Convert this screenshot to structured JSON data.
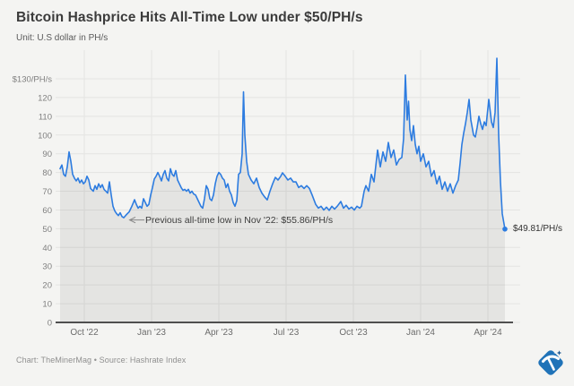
{
  "header": {
    "title": "Bitcoin Hashprice Hits All-Time Low under $50/PH/s",
    "subtitle": "Unit: U.S dollar in PH/s"
  },
  "footer": {
    "credit": "Chart: TheMinerMag • Source: Hashrate Index"
  },
  "logo": {
    "name": "TheMinerMag pickaxe diamond logo"
  },
  "chart_data": {
    "type": "line",
    "title": "Bitcoin Hashprice Hits All-Time Low under $50/PH/s",
    "xlabel": "",
    "ylabel": "U.S dollar in PH/s",
    "ylim": [
      0,
      130
    ],
    "grid": true,
    "legend": "none",
    "x_unit": "months since Sep 2022 (0 = Sep '22, 1 = Oct '22, 19 = Apr '24)",
    "x_ticks": [
      {
        "label": "Oct '22",
        "m": 1
      },
      {
        "label": "Jan '23",
        "m": 4
      },
      {
        "label": "Apr '23",
        "m": 7
      },
      {
        "label": "Jul '23",
        "m": 10
      },
      {
        "label": "Oct '23",
        "m": 13
      },
      {
        "label": "Jan '24",
        "m": 16
      },
      {
        "label": "Apr '24",
        "m": 19
      }
    ],
    "y_ticks": [
      {
        "label": "0",
        "v": 0
      },
      {
        "label": "10",
        "v": 10
      },
      {
        "label": "20",
        "v": 20
      },
      {
        "label": "30",
        "v": 30
      },
      {
        "label": "40",
        "v": 40
      },
      {
        "label": "50",
        "v": 50
      },
      {
        "label": "60",
        "v": 60
      },
      {
        "label": "70",
        "v": 70
      },
      {
        "label": "80",
        "v": 80
      },
      {
        "label": "90",
        "v": 90
      },
      {
        "label": "100",
        "v": 100
      },
      {
        "label": "110",
        "v": 110
      },
      {
        "label": "120",
        "v": 120
      },
      {
        "label": "$130/PH/s",
        "v": 130
      }
    ],
    "annotation": {
      "text": "Previous all-time low in Nov '22: $55.86/PH/s",
      "points_to": {
        "m": 2.76,
        "v": 55.86
      }
    },
    "end_label": {
      "text": "$49.81/PH/s",
      "m": 19.76,
      "v": 49.81
    },
    "colors": {
      "line": "#2d7ce0",
      "area": "rgba(70,70,70,0.09)",
      "grid": "#e4e4e2",
      "axis": "#4f4f4f",
      "background": "#f4f4f2",
      "logo_blue": "#2073b8",
      "logo_sparkle": "#17538f"
    },
    "series": [
      {
        "name": "Bitcoin hashprice (USD/PH/s)",
        "points": [
          [
            -0.08,
            82
          ],
          [
            0,
            84
          ],
          [
            0.08,
            79
          ],
          [
            0.16,
            78
          ],
          [
            0.24,
            83
          ],
          [
            0.32,
            91
          ],
          [
            0.4,
            86
          ],
          [
            0.48,
            79
          ],
          [
            0.56,
            77
          ],
          [
            0.64,
            75.5
          ],
          [
            0.72,
            77
          ],
          [
            0.8,
            74.5
          ],
          [
            0.88,
            76
          ],
          [
            0.96,
            74
          ],
          [
            1.04,
            75
          ],
          [
            1.12,
            78
          ],
          [
            1.2,
            76
          ],
          [
            1.28,
            71.5
          ],
          [
            1.4,
            70
          ],
          [
            1.48,
            73
          ],
          [
            1.56,
            71
          ],
          [
            1.64,
            74
          ],
          [
            1.72,
            72
          ],
          [
            1.8,
            73.5
          ],
          [
            1.88,
            71
          ],
          [
            1.96,
            70
          ],
          [
            2.04,
            69
          ],
          [
            2.12,
            75
          ],
          [
            2.2,
            68
          ],
          [
            2.28,
            62
          ],
          [
            2.36,
            59.5
          ],
          [
            2.44,
            58
          ],
          [
            2.52,
            57
          ],
          [
            2.6,
            58.5
          ],
          [
            2.68,
            56.5
          ],
          [
            2.76,
            55.86
          ],
          [
            2.84,
            57
          ],
          [
            2.92,
            58
          ],
          [
            3,
            59
          ],
          [
            3.12,
            62
          ],
          [
            3.24,
            65.5
          ],
          [
            3.32,
            63
          ],
          [
            3.4,
            61
          ],
          [
            3.48,
            62
          ],
          [
            3.56,
            61
          ],
          [
            3.64,
            66
          ],
          [
            3.72,
            64
          ],
          [
            3.8,
            62
          ],
          [
            3.88,
            63
          ],
          [
            3.96,
            68
          ],
          [
            4.04,
            72
          ],
          [
            4.12,
            76.5
          ],
          [
            4.2,
            78
          ],
          [
            4.28,
            80
          ],
          [
            4.36,
            78
          ],
          [
            4.44,
            75.5
          ],
          [
            4.52,
            79
          ],
          [
            4.6,
            81
          ],
          [
            4.68,
            77
          ],
          [
            4.76,
            75.5
          ],
          [
            4.84,
            82
          ],
          [
            4.92,
            79
          ],
          [
            5,
            78
          ],
          [
            5.08,
            81
          ],
          [
            5.16,
            76
          ],
          [
            5.24,
            74
          ],
          [
            5.32,
            72
          ],
          [
            5.4,
            70.5
          ],
          [
            5.48,
            71
          ],
          [
            5.56,
            70
          ],
          [
            5.64,
            71
          ],
          [
            5.72,
            69
          ],
          [
            5.8,
            70
          ],
          [
            5.88,
            68.5
          ],
          [
            5.96,
            68
          ],
          [
            6.04,
            66
          ],
          [
            6.12,
            64
          ],
          [
            6.2,
            62
          ],
          [
            6.28,
            61
          ],
          [
            6.36,
            66
          ],
          [
            6.44,
            73
          ],
          [
            6.52,
            71
          ],
          [
            6.6,
            66
          ],
          [
            6.68,
            65
          ],
          [
            6.76,
            68
          ],
          [
            6.84,
            74
          ],
          [
            6.92,
            78
          ],
          [
            7,
            80
          ],
          [
            7.08,
            79
          ],
          [
            7.16,
            77
          ],
          [
            7.24,
            76
          ],
          [
            7.32,
            72
          ],
          [
            7.4,
            74
          ],
          [
            7.48,
            70
          ],
          [
            7.56,
            68
          ],
          [
            7.64,
            64
          ],
          [
            7.72,
            62
          ],
          [
            7.8,
            65
          ],
          [
            7.88,
            79
          ],
          [
            7.96,
            80
          ],
          [
            8.04,
            90
          ],
          [
            8.1,
            123
          ],
          [
            8.16,
            100
          ],
          [
            8.24,
            86
          ],
          [
            8.32,
            79
          ],
          [
            8.44,
            76
          ],
          [
            8.56,
            74
          ],
          [
            8.68,
            77
          ],
          [
            8.8,
            72
          ],
          [
            8.92,
            69
          ],
          [
            9.04,
            67
          ],
          [
            9.16,
            65.4
          ],
          [
            9.28,
            70
          ],
          [
            9.4,
            74
          ],
          [
            9.52,
            77.4
          ],
          [
            9.64,
            76
          ],
          [
            9.76,
            78
          ],
          [
            9.84,
            79.8
          ],
          [
            9.96,
            78
          ],
          [
            10.08,
            76
          ],
          [
            10.2,
            77
          ],
          [
            10.32,
            75
          ],
          [
            10.44,
            75
          ],
          [
            10.56,
            72
          ],
          [
            10.68,
            73
          ],
          [
            10.8,
            71.5
          ],
          [
            10.92,
            73
          ],
          [
            11.04,
            71.5
          ],
          [
            11.16,
            68
          ],
          [
            11.32,
            63
          ],
          [
            11.44,
            61
          ],
          [
            11.56,
            62
          ],
          [
            11.68,
            60
          ],
          [
            11.8,
            61.5
          ],
          [
            11.92,
            59.8
          ],
          [
            12.04,
            62
          ],
          [
            12.16,
            60.5
          ],
          [
            12.28,
            62
          ],
          [
            12.44,
            64.5
          ],
          [
            12.56,
            61
          ],
          [
            12.68,
            62.5
          ],
          [
            12.8,
            60.5
          ],
          [
            12.92,
            61.5
          ],
          [
            13.04,
            60
          ],
          [
            13.16,
            62
          ],
          [
            13.28,
            61
          ],
          [
            13.36,
            62
          ],
          [
            13.48,
            70
          ],
          [
            13.56,
            73
          ],
          [
            13.68,
            70
          ],
          [
            13.8,
            79
          ],
          [
            13.92,
            75
          ],
          [
            14.08,
            92
          ],
          [
            14.2,
            83
          ],
          [
            14.32,
            91
          ],
          [
            14.44,
            86
          ],
          [
            14.56,
            96
          ],
          [
            14.68,
            88
          ],
          [
            14.8,
            92
          ],
          [
            14.92,
            84
          ],
          [
            15.04,
            87
          ],
          [
            15.16,
            88
          ],
          [
            15.24,
            98
          ],
          [
            15.32,
            132
          ],
          [
            15.4,
            108
          ],
          [
            15.46,
            118
          ],
          [
            15.52,
            103
          ],
          [
            15.6,
            97
          ],
          [
            15.68,
            105
          ],
          [
            15.76,
            95
          ],
          [
            15.84,
            90
          ],
          [
            15.92,
            94
          ],
          [
            16,
            86
          ],
          [
            16.12,
            90
          ],
          [
            16.24,
            83
          ],
          [
            16.36,
            86
          ],
          [
            16.48,
            78
          ],
          [
            16.6,
            81
          ],
          [
            16.72,
            74
          ],
          [
            16.84,
            78
          ],
          [
            16.96,
            71
          ],
          [
            17.08,
            75
          ],
          [
            17.2,
            70
          ],
          [
            17.32,
            74
          ],
          [
            17.44,
            69
          ],
          [
            17.56,
            73
          ],
          [
            17.68,
            76
          ],
          [
            17.76,
            85
          ],
          [
            17.84,
            95
          ],
          [
            17.92,
            101
          ],
          [
            18,
            106
          ],
          [
            18.08,
            112
          ],
          [
            18.16,
            119
          ],
          [
            18.24,
            108
          ],
          [
            18.36,
            100
          ],
          [
            18.44,
            99
          ],
          [
            18.52,
            104
          ],
          [
            18.6,
            110
          ],
          [
            18.68,
            106
          ],
          [
            18.76,
            103
          ],
          [
            18.84,
            107
          ],
          [
            18.92,
            105
          ],
          [
            19.04,
            119
          ],
          [
            19.16,
            107
          ],
          [
            19.24,
            104
          ],
          [
            19.32,
            112
          ],
          [
            19.4,
            141
          ],
          [
            19.48,
            100
          ],
          [
            19.56,
            75
          ],
          [
            19.64,
            58
          ],
          [
            19.76,
            49.81
          ]
        ]
      }
    ]
  }
}
